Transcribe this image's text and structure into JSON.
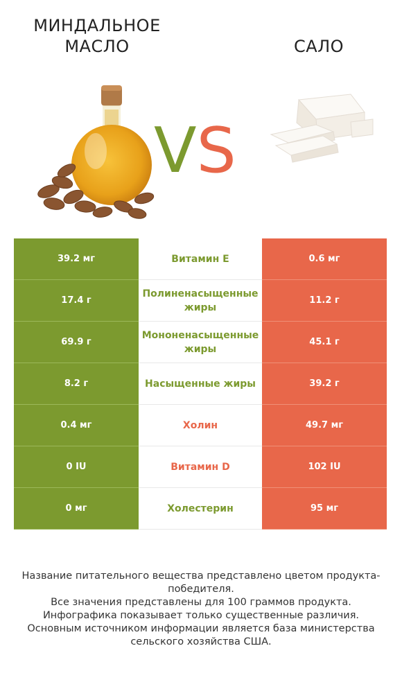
{
  "header": {
    "left_title": "Миндальное масло",
    "right_title": "Сало",
    "vs_v": "V",
    "vs_s": "S"
  },
  "images": {
    "left": "almond-oil-bottle-with-almonds",
    "right": "pork-fat-slices"
  },
  "colors": {
    "green": "#7c9a2f",
    "red": "#e8674a"
  },
  "rows": [
    {
      "left": "39.2 мг",
      "name": "Витамин E",
      "right": "0.6 мг",
      "winner": "left"
    },
    {
      "left": "17.4 г",
      "name": "Полиненасыщенные жиры",
      "right": "11.2 г",
      "winner": "left"
    },
    {
      "left": "69.9 г",
      "name": "Мононенасыщенные жиры",
      "right": "45.1 г",
      "winner": "left"
    },
    {
      "left": "8.2 г",
      "name": "Насыщенные жиры",
      "right": "39.2 г",
      "winner": "left"
    },
    {
      "left": "0.4 мг",
      "name": "Холин",
      "right": "49.7 мг",
      "winner": "right"
    },
    {
      "left": "0 IU",
      "name": "Витамин D",
      "right": "102 IU",
      "winner": "right"
    },
    {
      "left": "0 мг",
      "name": "Холестерин",
      "right": "95 мг",
      "winner": "left"
    }
  ],
  "footer": {
    "line1": "Название питательного вещества представлено цветом продукта-победителя.",
    "line2": "Все значения представлены для 100 граммов продукта.",
    "line3": "Инфографика показывает только существенные различия.",
    "line4": "Основным источником информации является база министерства сельского хозяйства США."
  }
}
